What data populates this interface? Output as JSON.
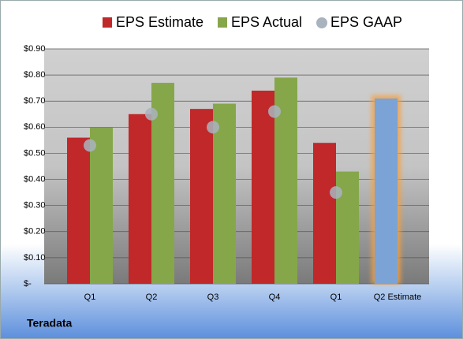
{
  "chart_data": {
    "type": "bar",
    "categories": [
      "Q1",
      "Q2",
      "Q3",
      "Q4",
      "Q1",
      "Q2 Estimate"
    ],
    "series": [
      {
        "name": "EPS Estimate",
        "color": "#c0282a",
        "colors": [
          "#c0282a",
          "#c0282a",
          "#c0282a",
          "#c0282a",
          "#c0282a",
          "#7ba3d6"
        ],
        "values": [
          0.56,
          0.65,
          0.67,
          0.74,
          0.54,
          0.71
        ]
      },
      {
        "name": "EPS Actual",
        "color": "#86a64a",
        "values": [
          0.6,
          0.77,
          0.69,
          0.79,
          0.43,
          null
        ]
      },
      {
        "name": "EPS GAAP",
        "color": "#a9b3be",
        "marker": "circle",
        "values": [
          0.53,
          0.65,
          0.6,
          0.66,
          0.35,
          null
        ]
      }
    ],
    "ylim": [
      0,
      0.9
    ],
    "yticks": [
      {
        "value": 0,
        "label": "$-"
      },
      {
        "value": 0.1,
        "label": "$0.10"
      },
      {
        "value": 0.2,
        "label": "$0.20"
      },
      {
        "value": 0.3,
        "label": "$0.30"
      },
      {
        "value": 0.4,
        "label": "$0.40"
      },
      {
        "value": 0.5,
        "label": "$0.50"
      },
      {
        "value": 0.6,
        "label": "$0.60"
      },
      {
        "value": 0.7,
        "label": "$0.70"
      },
      {
        "value": 0.8,
        "label": "$0.80"
      },
      {
        "value": 0.9,
        "label": "$0.90"
      }
    ],
    "grid": true,
    "legend": "top",
    "footer": "Teradata"
  }
}
